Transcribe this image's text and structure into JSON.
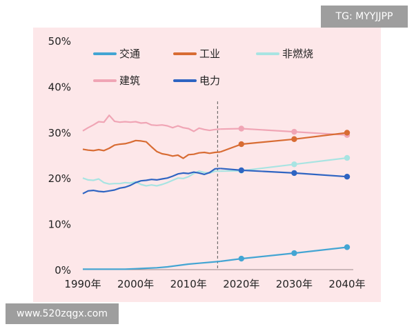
{
  "watermarks": {
    "top": "TG: MYYJJPP",
    "bottom": "www.520zqgx.com"
  },
  "chart_data": {
    "type": "line",
    "xlim": [
      1990,
      2040
    ],
    "ylim": [
      0,
      50
    ],
    "x_ticks": [
      "1990年",
      "2000年",
      "2010年",
      "2020年",
      "2030年",
      "2040年"
    ],
    "x_tick_values": [
      1990,
      2000,
      2010,
      2020,
      2030,
      2040
    ],
    "y_ticks": [
      "0%",
      "10%",
      "20%",
      "30%",
      "40%",
      "50%"
    ],
    "y_tick_values": [
      0,
      10,
      20,
      30,
      40,
      50
    ],
    "background_color": "#fde7e9",
    "divider_year": 2015.5,
    "legend_placement": "top",
    "series": [
      {
        "name": "交通",
        "color": "#43a5d3",
        "x": [
          1990,
          1992,
          1994,
          1996,
          1998,
          2000,
          2002,
          2004,
          2006,
          2008,
          2010,
          2012,
          2014,
          2016
        ],
        "y": [
          0.1,
          0.1,
          0.1,
          0.1,
          0.1,
          0.2,
          0.3,
          0.4,
          0.6,
          0.9,
          1.2,
          1.4,
          1.6,
          1.8
        ],
        "projection_x": [
          2020,
          2030,
          2040
        ],
        "projection_y": [
          2.4,
          3.6,
          4.9
        ]
      },
      {
        "name": "工业",
        "color": "#d86c33",
        "x": [
          1990,
          1991,
          1992,
          1993,
          1994,
          1995,
          1996,
          1997,
          1998,
          1999,
          2000,
          2001,
          2002,
          2003,
          2004,
          2005,
          2006,
          2007,
          2008,
          2009,
          2010,
          2011,
          2012,
          2013,
          2014,
          2015,
          2016
        ],
        "y": [
          26.3,
          26.1,
          26.0,
          26.2,
          26.0,
          26.5,
          27.2,
          27.4,
          27.5,
          27.8,
          28.2,
          28.1,
          27.9,
          26.8,
          25.8,
          25.3,
          25.1,
          24.8,
          25.0,
          24.3,
          25.1,
          25.2,
          25.5,
          25.6,
          25.4,
          25.6,
          25.7
        ],
        "projection_x": [
          2020,
          2030,
          2040
        ],
        "projection_y": [
          27.4,
          28.5,
          29.9
        ]
      },
      {
        "name": "非燃烧",
        "color": "#a8e4e2",
        "x": [
          1990,
          1991,
          1992,
          1993,
          1994,
          1995,
          1996,
          1997,
          1998,
          1999,
          2000,
          2001,
          2002,
          2003,
          2004,
          2005,
          2006,
          2007,
          2008,
          2009,
          2010,
          2011,
          2012,
          2013,
          2014,
          2015,
          2016
        ],
        "y": [
          20.0,
          19.6,
          19.5,
          19.8,
          19.0,
          18.7,
          18.8,
          18.8,
          19.0,
          18.9,
          19.2,
          18.6,
          18.3,
          18.5,
          18.3,
          18.6,
          19.0,
          19.5,
          20.0,
          19.9,
          20.3,
          21.0,
          21.5,
          21.2,
          21.1,
          21.5,
          21.5
        ],
        "projection_x": [
          2020,
          2030,
          2040
        ],
        "projection_y": [
          21.6,
          23.0,
          24.4
        ]
      },
      {
        "name": "建筑",
        "color": "#f0a5b5",
        "x": [
          1990,
          1991,
          1992,
          1993,
          1994,
          1995,
          1996,
          1997,
          1998,
          1999,
          2000,
          2001,
          2002,
          2003,
          2004,
          2005,
          2006,
          2007,
          2008,
          2009,
          2010,
          2011,
          2012,
          2013,
          2014,
          2015,
          2016
        ],
        "y": [
          30.3,
          31.0,
          31.6,
          32.3,
          32.2,
          33.7,
          32.4,
          32.2,
          32.3,
          32.2,
          32.3,
          32.0,
          32.1,
          31.6,
          31.5,
          31.6,
          31.4,
          31.0,
          31.4,
          31.0,
          30.8,
          30.2,
          30.9,
          30.6,
          30.4,
          30.6,
          30.7
        ],
        "projection_x": [
          2020,
          2030,
          2040
        ],
        "projection_y": [
          30.8,
          30.1,
          29.4
        ]
      },
      {
        "name": "电力",
        "color": "#2e64c2",
        "x": [
          1990,
          1991,
          1992,
          1993,
          1994,
          1995,
          1996,
          1997,
          1998,
          1999,
          2000,
          2001,
          2002,
          2003,
          2004,
          2005,
          2006,
          2007,
          2008,
          2009,
          2010,
          2011,
          2012,
          2013,
          2014,
          2015,
          2016
        ],
        "y": [
          16.6,
          17.2,
          17.3,
          17.1,
          17.0,
          17.2,
          17.4,
          17.8,
          18.0,
          18.4,
          19.0,
          19.4,
          19.5,
          19.7,
          19.6,
          19.8,
          20.0,
          20.4,
          20.9,
          21.1,
          21.0,
          21.3,
          21.1,
          20.8,
          21.2,
          22.0,
          22.1
        ],
        "projection_x": [
          2020,
          2030,
          2040
        ],
        "projection_y": [
          21.7,
          21.1,
          20.3
        ]
      }
    ]
  }
}
